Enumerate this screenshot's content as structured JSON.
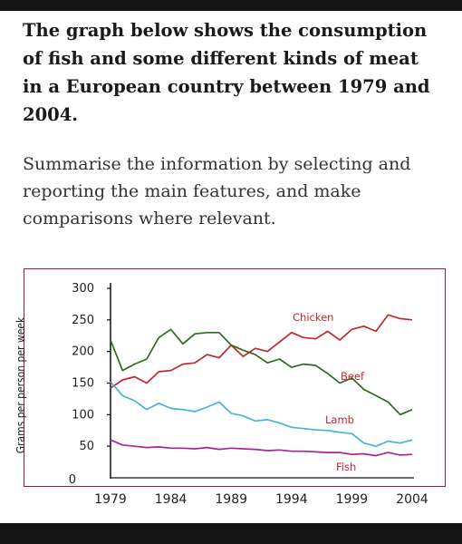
{
  "task": {
    "title": "The graph below shows the consumption of fish and some different kinds of meat in a European country between 1979 and 2004.",
    "instructions": "Summarise the information by selecting and reporting the main features, and make comparisons where relevant."
  },
  "colors": {
    "chicken": "#c0282f",
    "beef": "#2e6b1f",
    "lamb": "#46b5cf",
    "fish": "#a8249c",
    "axis": "#111111",
    "frame": "#9e1b3c",
    "label_text": "#c0282f"
  },
  "chart_data": {
    "type": "line",
    "title": "",
    "xlabel": "",
    "ylabel": "Grams per person per week",
    "xlim": [
      1979,
      2004
    ],
    "ylim": [
      0,
      300
    ],
    "x_ticks": [
      "1979",
      "1984",
      "1989",
      "1994",
      "1999",
      "2004"
    ],
    "y_ticks": [
      "300",
      "250",
      "200",
      "150",
      "100",
      "50",
      "0"
    ],
    "grid": false,
    "legend": "inline labels",
    "series": [
      {
        "name": "Chicken",
        "points": [
          [
            1979,
            142
          ],
          [
            1980,
            155
          ],
          [
            1981,
            160
          ],
          [
            1982,
            150
          ],
          [
            1983,
            168
          ],
          [
            1984,
            170
          ],
          [
            1985,
            180
          ],
          [
            1986,
            182
          ],
          [
            1987,
            195
          ],
          [
            1988,
            190
          ],
          [
            1989,
            210
          ],
          [
            1990,
            192
          ],
          [
            1991,
            205
          ],
          [
            1992,
            200
          ],
          [
            1993,
            215
          ],
          [
            1994,
            230
          ],
          [
            1995,
            222
          ],
          [
            1996,
            220
          ],
          [
            1997,
            232
          ],
          [
            1998,
            218
          ],
          [
            1999,
            235
          ],
          [
            2000,
            240
          ],
          [
            2001,
            232
          ],
          [
            2002,
            258
          ],
          [
            2003,
            252
          ],
          [
            2004,
            250
          ]
        ]
      },
      {
        "name": "Beef",
        "points": [
          [
            1979,
            218
          ],
          [
            1980,
            170
          ],
          [
            1981,
            180
          ],
          [
            1982,
            188
          ],
          [
            1983,
            222
          ],
          [
            1984,
            235
          ],
          [
            1985,
            212
          ],
          [
            1986,
            228
          ],
          [
            1987,
            230
          ],
          [
            1988,
            230
          ],
          [
            1989,
            210
          ],
          [
            1990,
            202
          ],
          [
            1991,
            195
          ],
          [
            1992,
            182
          ],
          [
            1993,
            188
          ],
          [
            1994,
            175
          ],
          [
            1995,
            180
          ],
          [
            1996,
            178
          ],
          [
            1997,
            165
          ],
          [
            1998,
            150
          ],
          [
            1999,
            158
          ],
          [
            2000,
            140
          ],
          [
            2001,
            130
          ],
          [
            2002,
            120
          ],
          [
            2003,
            100
          ],
          [
            2004,
            108
          ]
        ]
      },
      {
        "name": "Lamb",
        "points": [
          [
            1979,
            152
          ],
          [
            1980,
            130
          ],
          [
            1981,
            122
          ],
          [
            1982,
            108
          ],
          [
            1983,
            118
          ],
          [
            1984,
            110
          ],
          [
            1985,
            108
          ],
          [
            1986,
            105
          ],
          [
            1987,
            112
          ],
          [
            1988,
            120
          ],
          [
            1989,
            102
          ],
          [
            1990,
            98
          ],
          [
            1991,
            90
          ],
          [
            1992,
            92
          ],
          [
            1993,
            87
          ],
          [
            1994,
            80
          ],
          [
            1995,
            78
          ],
          [
            1996,
            76
          ],
          [
            1997,
            75
          ],
          [
            1998,
            72
          ],
          [
            1999,
            70
          ],
          [
            2000,
            55
          ],
          [
            2001,
            50
          ],
          [
            2002,
            58
          ],
          [
            2003,
            55
          ],
          [
            2004,
            60
          ]
        ]
      },
      {
        "name": "Fish",
        "points": [
          [
            1979,
            60
          ],
          [
            1980,
            52
          ],
          [
            1981,
            50
          ],
          [
            1982,
            48
          ],
          [
            1983,
            49
          ],
          [
            1984,
            47
          ],
          [
            1985,
            47
          ],
          [
            1986,
            46
          ],
          [
            1987,
            48
          ],
          [
            1988,
            45
          ],
          [
            1989,
            47
          ],
          [
            1990,
            46
          ],
          [
            1991,
            45
          ],
          [
            1992,
            43
          ],
          [
            1993,
            44
          ],
          [
            1994,
            42
          ],
          [
            1995,
            42
          ],
          [
            1996,
            41
          ],
          [
            1997,
            40
          ],
          [
            1998,
            40
          ],
          [
            1999,
            37
          ],
          [
            2000,
            38
          ],
          [
            2001,
            35
          ],
          [
            2002,
            40
          ],
          [
            2003,
            36
          ],
          [
            2004,
            37
          ]
        ]
      }
    ]
  }
}
